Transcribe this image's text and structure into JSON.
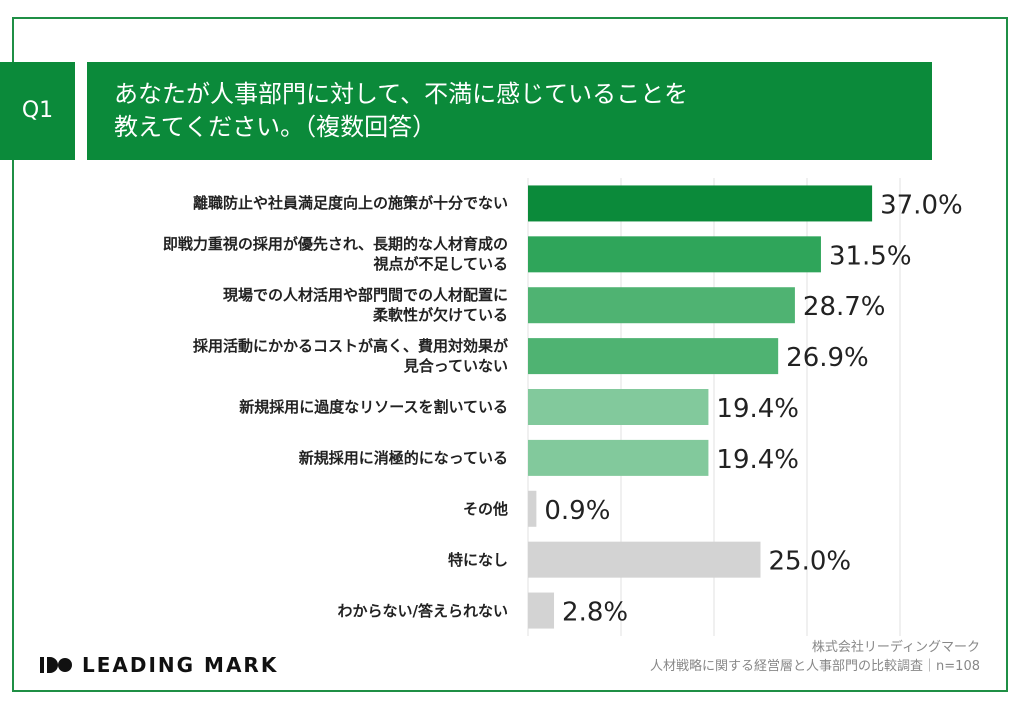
{
  "header": {
    "question": "Q1",
    "title": "あなたが人事部門に対して、不満に感じていることを\n教えてください。（複数回答）"
  },
  "chart_data": {
    "type": "bar",
    "orientation": "horizontal",
    "categories": [
      "離職防止や社員満足度向上の施策が十分でない",
      "即戦力重視の採用が優先され、長期的な人材育成の\n視点が不足している",
      "現場での人材活用や部門間での人材配置に\n柔軟性が欠けている",
      "採用活動にかかるコストが高く、費用対効果が\n見合っていない",
      "新規採用に過度なリソースを割いている",
      "新規採用に消極的になっている",
      "その他",
      "特になし",
      "わからない/答えられない"
    ],
    "values": [
      37.0,
      31.5,
      28.7,
      26.9,
      19.4,
      19.4,
      0.9,
      25.0,
      2.8
    ],
    "value_labels": [
      "37.0%",
      "31.5%",
      "28.7%",
      "26.9%",
      "19.4%",
      "19.4%",
      "0.9%",
      "25.0%",
      "2.8%"
    ],
    "colors": [
      "#0b8a3a",
      "#2fa55a",
      "#4fb372",
      "#4fb372",
      "#82c99c",
      "#82c99c",
      "#d3d3d3",
      "#d3d3d3",
      "#d3d3d3"
    ],
    "xlim": [
      0,
      40
    ],
    "xticks": [
      0,
      10,
      20,
      30,
      40
    ],
    "grid": true
  },
  "footer": {
    "logo": "LEADING MARK",
    "company": "株式会社リーディングマーク",
    "source": "人材戦略に関する経営層と人事部門の比較調査｜n=108"
  }
}
